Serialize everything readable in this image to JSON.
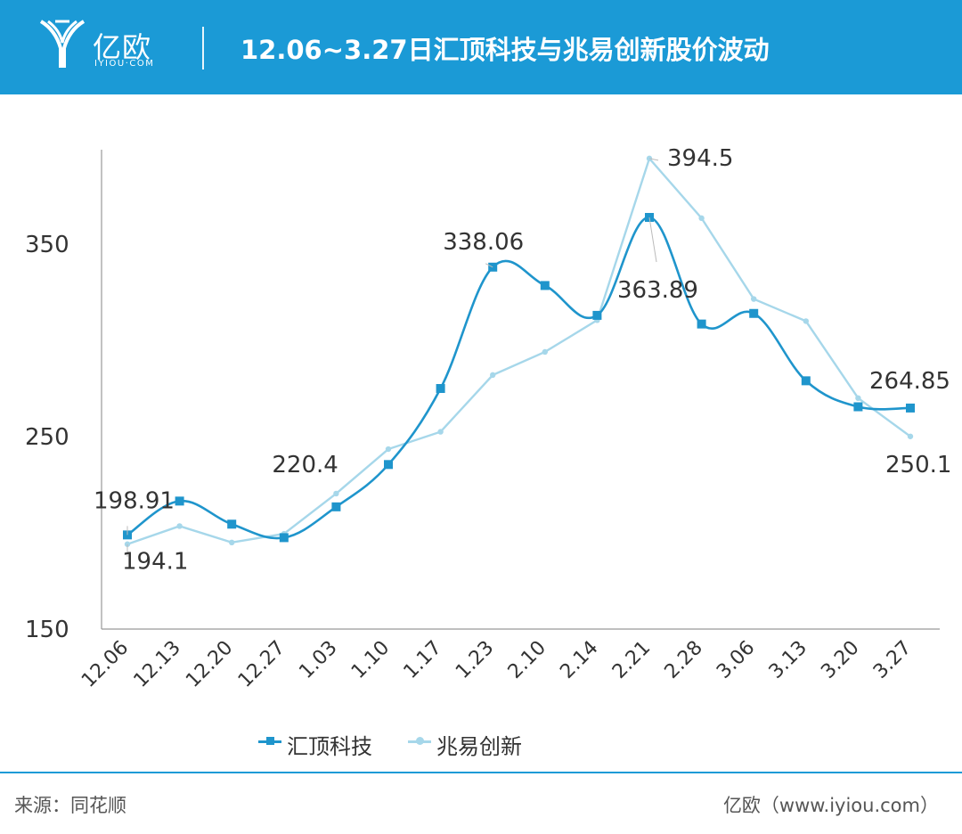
{
  "header": {
    "logo_text": "亿欧",
    "logo_sub": "IYIOU·COM",
    "title": "12.06~3.27日汇顶科技与兆易创新股价波动"
  },
  "footer": {
    "source": "来源：同花顺",
    "brand": "亿欧（www.iyiou.com）"
  },
  "colors": {
    "header_bg": "#1b9ad6",
    "series1": "#1f95cc",
    "series2": "#a6d7ea"
  },
  "chart_data": {
    "type": "line",
    "title": "12.06~3.27日汇顶科技与兆易创新股价波动",
    "xlabel": "",
    "ylabel": "",
    "categories": [
      "12.06",
      "12.13",
      "12.20",
      "12.27",
      "1.03",
      "1.10",
      "1.17",
      "1.23",
      "2.10",
      "2.14",
      "2.21",
      "2.28",
      "3.06",
      "3.13",
      "3.20",
      "3.27"
    ],
    "yticks": [
      150,
      250,
      350
    ],
    "ylim": [
      150,
      400
    ],
    "grid": false,
    "legend_position": "bottom",
    "series": [
      {
        "name": "汇顶科技",
        "marker": "square",
        "values": [
          198.91,
          216.5,
          204.5,
          197.5,
          213.5,
          235.5,
          275,
          338.06,
          328.5,
          313,
          363.89,
          308.5,
          314,
          279,
          265.5,
          264.85
        ]
      },
      {
        "name": "兆易创新",
        "marker": "circle",
        "values": [
          194.1,
          203.5,
          195,
          199.5,
          220.4,
          243.5,
          252.5,
          282,
          294,
          310.5,
          394.5,
          363.5,
          321.5,
          310,
          270,
          250.1
        ]
      }
    ],
    "annotations": [
      {
        "series": 0,
        "index": 0,
        "text": "198.91"
      },
      {
        "series": 1,
        "index": 0,
        "text": "194.1"
      },
      {
        "series": 1,
        "index": 4,
        "text": "220.4"
      },
      {
        "series": 0,
        "index": 7,
        "text": "338.06"
      },
      {
        "series": 1,
        "index": 10,
        "text": "394.5"
      },
      {
        "series": 0,
        "index": 10,
        "text": "363.89"
      },
      {
        "series": 0,
        "index": 15,
        "text": "264.85"
      },
      {
        "series": 1,
        "index": 15,
        "text": "250.1"
      }
    ]
  }
}
